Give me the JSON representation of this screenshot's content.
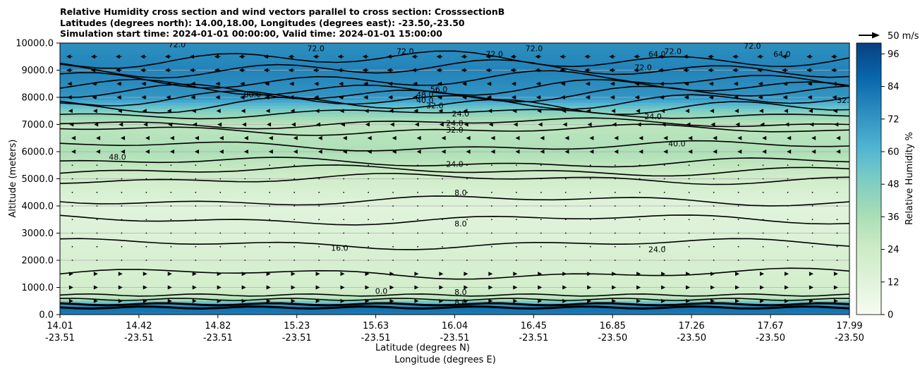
{
  "title_lines": [
    "Relative Humidity cross section and wind vectors parallel to cross section: CrosssectionB",
    "Latitudes (degrees north): 14.00,18.00, Longitudes (degrees east): -23.50,-23.50",
    "Simulation start time: 2024-01-01 00:00:00, Valid time: 2024-01-01 15:00:00"
  ],
  "chart_data": {
    "type": "heatmap",
    "title": "Relative Humidity cross section and wind vectors parallel to cross section: CrosssectionB",
    "ylabel": "Altitude (meters)",
    "xlabel_lines": [
      "Latitude (degrees N)",
      "Longitude (degrees E)"
    ],
    "ylim": [
      0,
      10000
    ],
    "y_ticks": [
      "0.0",
      "1000.0",
      "2000.0",
      "3000.0",
      "4000.0",
      "5000.0",
      "6000.0",
      "7000.0",
      "8000.0",
      "9000.0",
      "10000.0"
    ],
    "y_tick_values": [
      0,
      1000,
      2000,
      3000,
      4000,
      5000,
      6000,
      7000,
      8000,
      9000,
      10000
    ],
    "x_range": [
      14.01,
      17.99
    ],
    "x_ticks": [
      {
        "lat": "14.01",
        "lon": "-23.51"
      },
      {
        "lat": "14.42",
        "lon": "-23.51"
      },
      {
        "lat": "14.82",
        "lon": "-23.51"
      },
      {
        "lat": "15.23",
        "lon": "-23.51"
      },
      {
        "lat": "15.63",
        "lon": "-23.51"
      },
      {
        "lat": "16.04",
        "lon": "-23.51"
      },
      {
        "lat": "16.45",
        "lon": "-23.51"
      },
      {
        "lat": "16.85",
        "lon": "-23.50"
      },
      {
        "lat": "17.26",
        "lon": "-23.50"
      },
      {
        "lat": "17.67",
        "lon": "-23.50"
      },
      {
        "lat": "17.99",
        "lon": "-23.50"
      }
    ],
    "colorbar": {
      "label": "Relative Humidity %",
      "range": [
        0,
        100
      ],
      "ticks": [
        "0",
        "12",
        "24",
        "36",
        "48",
        "60",
        "72",
        "84",
        "96"
      ],
      "tick_values": [
        0,
        12,
        24,
        36,
        48,
        60,
        72,
        84,
        96
      ],
      "colormap": "GnBu",
      "levels": 25
    },
    "wind_key_label": "50 m/s",
    "rh_profile_by_altitude": [
      {
        "alt": 0,
        "rh": 80
      },
      {
        "alt": 300,
        "rh": 85
      },
      {
        "alt": 600,
        "rh": 30
      },
      {
        "alt": 1000,
        "rh": 20
      },
      {
        "alt": 2000,
        "rh": 18
      },
      {
        "alt": 3000,
        "rh": 14
      },
      {
        "alt": 4000,
        "rh": 12
      },
      {
        "alt": 5000,
        "rh": 22
      },
      {
        "alt": 6000,
        "rh": 35
      },
      {
        "alt": 7000,
        "rh": 30
      },
      {
        "alt": 7500,
        "rh": 48
      },
      {
        "alt": 8000,
        "rh": 72
      },
      {
        "alt": 9000,
        "rh": 78
      },
      {
        "alt": 10000,
        "rh": 74
      }
    ],
    "contour_labels": [
      {
        "text": "72.0",
        "x": 14.6,
        "y": 9950
      },
      {
        "text": "72.0",
        "x": 15.3,
        "y": 9800
      },
      {
        "text": "72.0",
        "x": 15.75,
        "y": 9700
      },
      {
        "text": "72.0",
        "x": 16.2,
        "y": 9600
      },
      {
        "text": "72.0",
        "x": 16.4,
        "y": 9800
      },
      {
        "text": "72.0",
        "x": 16.95,
        "y": 9100
      },
      {
        "text": "72.0",
        "x": 17.1,
        "y": 9700
      },
      {
        "text": "72.0",
        "x": 17.5,
        "y": 9900
      },
      {
        "text": "64.0",
        "x": 17.02,
        "y": 9600
      },
      {
        "text": "64.0",
        "x": 17.65,
        "y": 9600
      },
      {
        "text": "80.0",
        "x": 14.98,
        "y": 8100
      },
      {
        "text": "56.0",
        "x": 15.92,
        "y": 8300
      },
      {
        "text": "48.0",
        "x": 15.85,
        "y": 8100
      },
      {
        "text": "40.0",
        "x": 15.85,
        "y": 7900
      },
      {
        "text": "32.0",
        "x": 15.9,
        "y": 7700
      },
      {
        "text": "24.0",
        "x": 16.03,
        "y": 7400
      },
      {
        "text": "24.0",
        "x": 16.0,
        "y": 7050
      },
      {
        "text": "32.0",
        "x": 16.0,
        "y": 6800
      },
      {
        "text": "24.0",
        "x": 17.0,
        "y": 7300
      },
      {
        "text": "48.0",
        "x": 14.3,
        "y": 5800
      },
      {
        "text": "40.0",
        "x": 17.12,
        "y": 6300
      },
      {
        "text": "32.0",
        "x": 17.97,
        "y": 7900
      },
      {
        "text": "24.0",
        "x": 16.0,
        "y": 5550
      },
      {
        "text": "8.0",
        "x": 16.03,
        "y": 4500
      },
      {
        "text": "8.0",
        "x": 16.03,
        "y": 3350
      },
      {
        "text": "16.0",
        "x": 15.42,
        "y": 2450
      },
      {
        "text": "24.0",
        "x": 17.02,
        "y": 2400
      },
      {
        "text": "8.0",
        "x": 16.03,
        "y": 830
      },
      {
        "text": "8.0",
        "x": 16.03,
        "y": 450
      },
      {
        "text": "0.0",
        "x": 15.63,
        "y": 870
      }
    ],
    "wind_vectors": [
      {
        "alt": 9500,
        "u": -6
      },
      {
        "alt": 9000,
        "u": -6
      },
      {
        "alt": 8500,
        "u": -5
      },
      {
        "alt": 8000,
        "u": -5
      },
      {
        "alt": 7500,
        "u": -4
      },
      {
        "alt": 7000,
        "u": -3
      },
      {
        "alt": 6500,
        "u": -1
      },
      {
        "alt": 6000,
        "u": -1
      },
      {
        "alt": 5500,
        "u": 0
      },
      {
        "alt": 5000,
        "u": 0
      },
      {
        "alt": 4500,
        "u": 0
      },
      {
        "alt": 4000,
        "u": 0
      },
      {
        "alt": 3500,
        "u": 0
      },
      {
        "alt": 3000,
        "u": 0
      },
      {
        "alt": 2500,
        "u": 0
      },
      {
        "alt": 2000,
        "u": 0
      },
      {
        "alt": 1500,
        "u": 1
      },
      {
        "alt": 1000,
        "u": 1
      },
      {
        "alt": 500,
        "u": 1
      }
    ]
  }
}
